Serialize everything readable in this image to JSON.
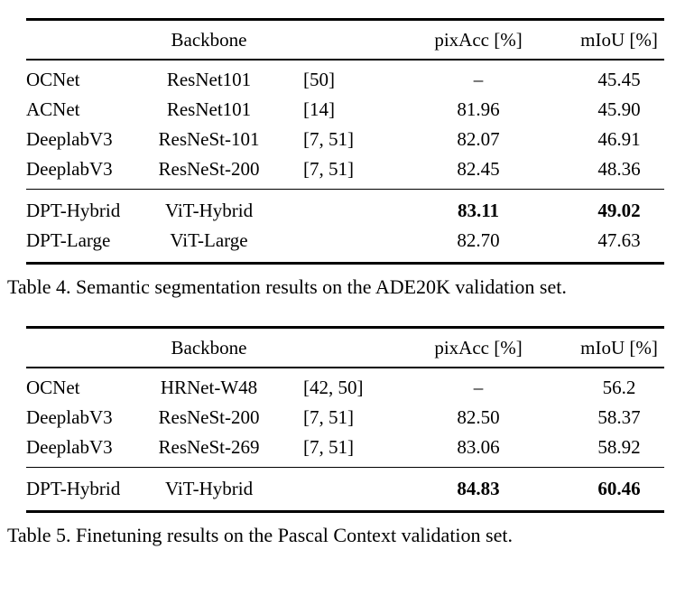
{
  "table4": {
    "headers": {
      "backbone": "Backbone",
      "pixacc": "pixAcc [%]",
      "miou": "mIoU [%]"
    },
    "rows_main": [
      {
        "method": "OCNet",
        "backbone": "ResNet101",
        "cite": "[50]",
        "pixacc": "–",
        "miou": "45.45"
      },
      {
        "method": "ACNet",
        "backbone": "ResNet101",
        "cite": "[14]",
        "pixacc": "81.96",
        "miou": "45.90"
      },
      {
        "method": "DeeplabV3",
        "backbone": "ResNeSt-101",
        "cite": "[7, 51]",
        "pixacc": "82.07",
        "miou": "46.91"
      },
      {
        "method": "DeeplabV3",
        "backbone": "ResNeSt-200",
        "cite": "[7, 51]",
        "pixacc": "82.45",
        "miou": "48.36"
      }
    ],
    "rows_ours": [
      {
        "method": "DPT-Hybrid",
        "backbone": "ViT-Hybrid",
        "cite": "",
        "pixacc": "83.11",
        "miou": "49.02"
      },
      {
        "method": "DPT-Large",
        "backbone": "ViT-Large",
        "cite": "",
        "pixacc": "82.70",
        "miou": "47.63"
      }
    ],
    "caption": "Table 4. Semantic segmentation results on the ADE20K validation set."
  },
  "table5": {
    "headers": {
      "backbone": "Backbone",
      "pixacc": "pixAcc [%]",
      "miou": "mIoU [%]"
    },
    "rows_main": [
      {
        "method": "OCNet",
        "backbone": "HRNet-W48",
        "cite": "[42, 50]",
        "pixacc": "–",
        "miou": "56.2"
      },
      {
        "method": "DeeplabV3",
        "backbone": "ResNeSt-200",
        "cite": "[7, 51]",
        "pixacc": "82.50",
        "miou": "58.37"
      },
      {
        "method": "DeeplabV3",
        "backbone": "ResNeSt-269",
        "cite": "[7, 51]",
        "pixacc": "83.06",
        "miou": "58.92"
      }
    ],
    "rows_ours": [
      {
        "method": "DPT-Hybrid",
        "backbone": "ViT-Hybrid",
        "cite": "",
        "pixacc": "84.83",
        "miou": "60.46"
      }
    ],
    "caption": "Table 5. Finetuning results on the Pascal Context validation set."
  }
}
